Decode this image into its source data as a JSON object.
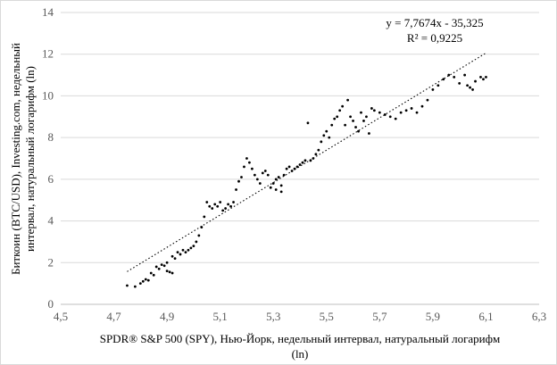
{
  "chart_data": {
    "type": "scatter",
    "title": "",
    "xlabel": "SPDR® S&P 500 (SPY), Нью-Йорк, недельный интервал, натуральный логарифм (ln)",
    "xlabel_line1": "SPDR® S&P 500 (SPY), Нью-Йорк, недельный интервал, натуральный логарифм",
    "xlabel_line2": "(ln)",
    "ylabel": "Биткоин (BTC/USD), Investing.com, недельный интервал, натуральный логарифм (ln)",
    "ylabel_line1": "Биткоин (BTC/USD), Investing.com, недельный",
    "ylabel_line2": "интервал, натуральный логарифм (ln)",
    "xlim": [
      4.5,
      6.3
    ],
    "ylim": [
      0,
      14
    ],
    "x_ticks": [
      4.5,
      4.7,
      4.9,
      5.1,
      5.3,
      5.5,
      5.7,
      5.9,
      6.1,
      6.3
    ],
    "x_tick_labels": [
      "4,5",
      "4,7",
      "4,9",
      "5,1",
      "5,3",
      "5,5",
      "5,7",
      "5,9",
      "6,1",
      "6,3"
    ],
    "y_ticks": [
      0,
      2,
      4,
      6,
      8,
      10,
      12,
      14
    ],
    "y_tick_labels": [
      "0",
      "2",
      "4",
      "6",
      "8",
      "10",
      "12",
      "14"
    ],
    "grid": "horizontal",
    "legend": "none",
    "trendline": {
      "type": "linear",
      "slope": 7.7674,
      "intercept": -35.325,
      "x_range": [
        4.75,
        6.1
      ],
      "equation": "y = 7,7674x - 35,325",
      "r_squared": "R² = 0,9225"
    },
    "series": [
      {
        "points": [
          [
            4.75,
            0.9
          ],
          [
            4.78,
            0.85
          ],
          [
            4.8,
            1.0
          ],
          [
            4.81,
            1.1
          ],
          [
            4.82,
            1.2
          ],
          [
            4.83,
            1.15
          ],
          [
            4.84,
            1.5
          ],
          [
            4.85,
            1.4
          ],
          [
            4.86,
            1.8
          ],
          [
            4.87,
            1.7
          ],
          [
            4.88,
            1.9
          ],
          [
            4.89,
            1.85
          ],
          [
            4.9,
            2.0
          ],
          [
            4.9,
            1.6
          ],
          [
            4.91,
            1.55
          ],
          [
            4.92,
            1.5
          ],
          [
            4.92,
            2.3
          ],
          [
            4.93,
            2.2
          ],
          [
            4.94,
            2.5
          ],
          [
            4.95,
            2.4
          ],
          [
            4.96,
            2.6
          ],
          [
            4.97,
            2.5
          ],
          [
            4.98,
            2.6
          ],
          [
            4.99,
            2.7
          ],
          [
            5.0,
            2.8
          ],
          [
            5.01,
            3.0
          ],
          [
            5.02,
            3.3
          ],
          [
            5.03,
            3.7
          ],
          [
            5.04,
            4.2
          ],
          [
            5.05,
            4.9
          ],
          [
            5.06,
            4.7
          ],
          [
            5.07,
            4.6
          ],
          [
            5.08,
            4.8
          ],
          [
            5.09,
            4.7
          ],
          [
            5.1,
            4.9
          ],
          [
            5.11,
            4.5
          ],
          [
            5.12,
            4.6
          ],
          [
            5.13,
            4.8
          ],
          [
            5.14,
            4.7
          ],
          [
            5.15,
            4.9
          ],
          [
            5.16,
            5.5
          ],
          [
            5.17,
            5.9
          ],
          [
            5.18,
            6.1
          ],
          [
            5.19,
            6.6
          ],
          [
            5.2,
            7.0
          ],
          [
            5.21,
            6.8
          ],
          [
            5.22,
            6.5
          ],
          [
            5.23,
            6.2
          ],
          [
            5.24,
            6.0
          ],
          [
            5.25,
            5.8
          ],
          [
            5.26,
            6.3
          ],
          [
            5.27,
            6.4
          ],
          [
            5.28,
            6.2
          ],
          [
            5.29,
            5.6
          ],
          [
            5.3,
            5.8
          ],
          [
            5.31,
            6.0
          ],
          [
            5.31,
            5.5
          ],
          [
            5.32,
            6.1
          ],
          [
            5.33,
            5.7
          ],
          [
            5.33,
            5.4
          ],
          [
            5.34,
            6.2
          ],
          [
            5.35,
            6.5
          ],
          [
            5.36,
            6.6
          ],
          [
            5.37,
            6.4
          ],
          [
            5.38,
            6.5
          ],
          [
            5.39,
            6.6
          ],
          [
            5.4,
            6.7
          ],
          [
            5.41,
            6.8
          ],
          [
            5.42,
            6.9
          ],
          [
            5.43,
            8.7
          ],
          [
            5.44,
            6.9
          ],
          [
            5.45,
            7.0
          ],
          [
            5.46,
            7.2
          ],
          [
            5.47,
            7.4
          ],
          [
            5.48,
            7.8
          ],
          [
            5.49,
            8.1
          ],
          [
            5.5,
            8.3
          ],
          [
            5.51,
            8.0
          ],
          [
            5.52,
            8.6
          ],
          [
            5.53,
            8.9
          ],
          [
            5.54,
            9.0
          ],
          [
            5.55,
            9.3
          ],
          [
            5.56,
            9.5
          ],
          [
            5.57,
            8.6
          ],
          [
            5.58,
            9.8
          ],
          [
            5.59,
            9.0
          ],
          [
            5.6,
            8.8
          ],
          [
            5.61,
            8.5
          ],
          [
            5.62,
            8.3
          ],
          [
            5.63,
            9.2
          ],
          [
            5.64,
            8.8
          ],
          [
            5.65,
            9.0
          ],
          [
            5.66,
            8.2
          ],
          [
            5.67,
            9.4
          ],
          [
            5.68,
            9.3
          ],
          [
            5.7,
            9.2
          ],
          [
            5.72,
            9.1
          ],
          [
            5.74,
            9.0
          ],
          [
            5.76,
            8.9
          ],
          [
            5.78,
            9.2
          ],
          [
            5.8,
            9.3
          ],
          [
            5.82,
            9.4
          ],
          [
            5.84,
            9.2
          ],
          [
            5.86,
            9.5
          ],
          [
            5.88,
            9.8
          ],
          [
            5.9,
            10.3
          ],
          [
            5.92,
            10.5
          ],
          [
            5.94,
            10.8
          ],
          [
            5.96,
            11.0
          ],
          [
            5.98,
            10.9
          ],
          [
            6.0,
            10.6
          ],
          [
            6.02,
            11.0
          ],
          [
            6.03,
            10.5
          ],
          [
            6.04,
            10.4
          ],
          [
            6.05,
            10.3
          ],
          [
            6.06,
            10.7
          ],
          [
            6.08,
            10.9
          ],
          [
            6.09,
            10.8
          ],
          [
            6.1,
            10.9
          ]
        ]
      }
    ]
  }
}
